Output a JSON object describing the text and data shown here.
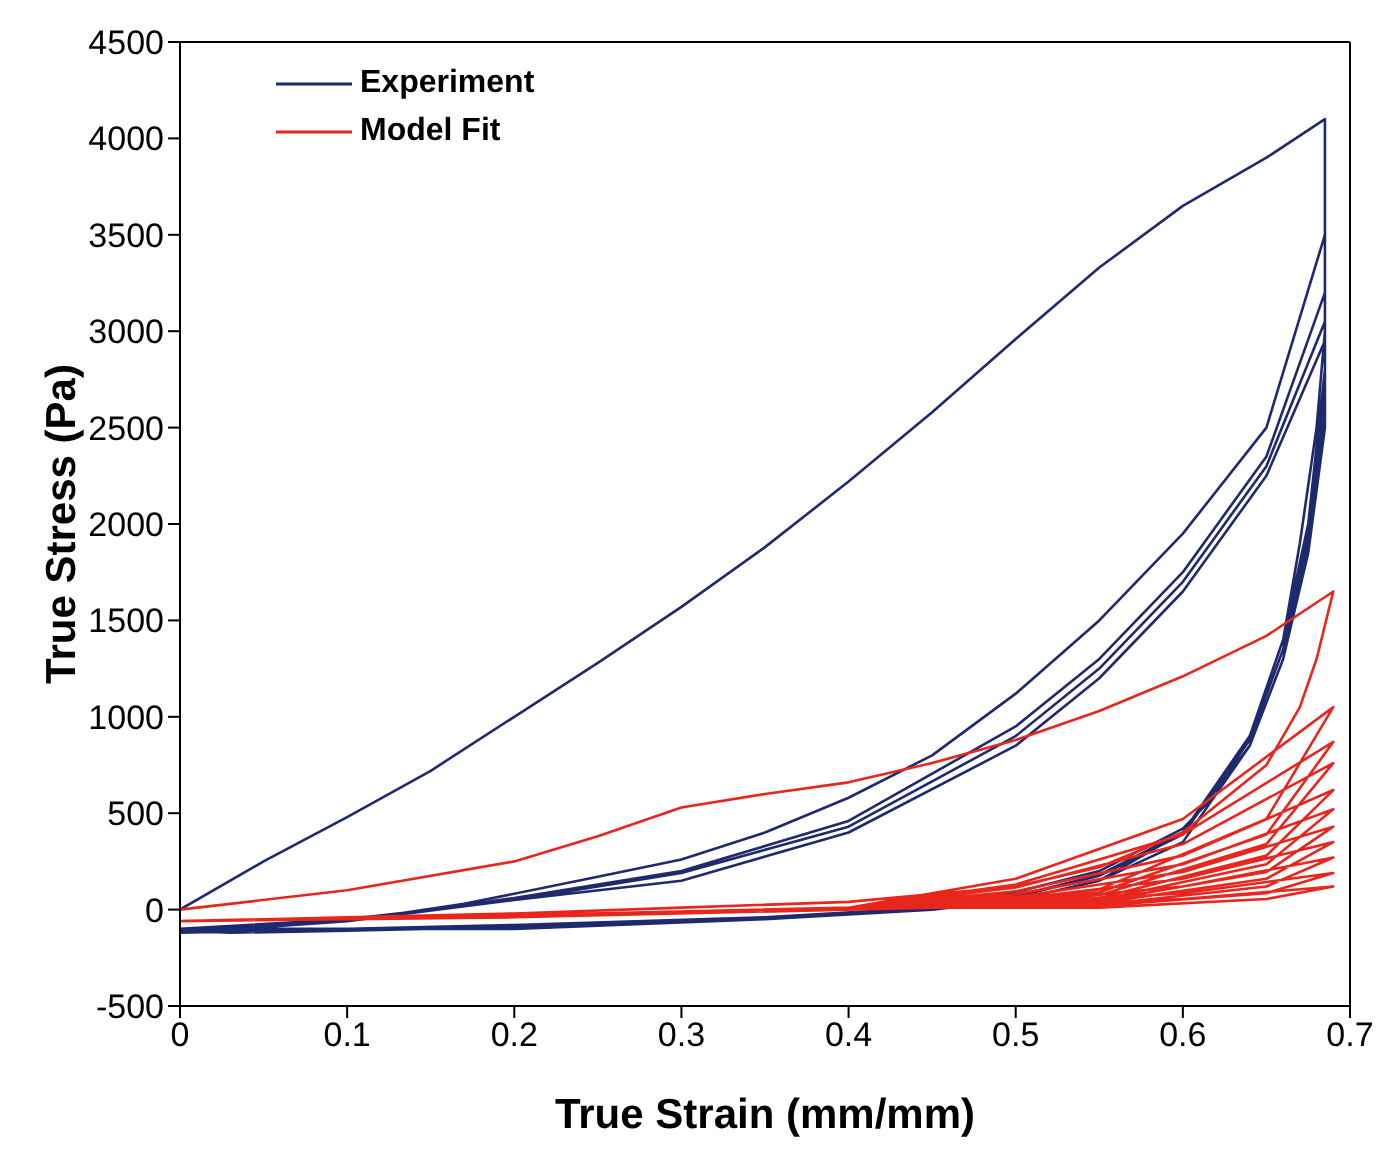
{
  "chart_data": {
    "type": "line",
    "xlabel": "True Strain (mm/mm)",
    "ylabel": "True Stress (Pa)",
    "xlim": [
      0,
      0.7
    ],
    "xticks": [
      0,
      0.1,
      0.2,
      0.3,
      0.4,
      0.5,
      0.6,
      0.7
    ],
    "ylim": [
      -500,
      4500
    ],
    "yticks": [
      -500,
      0,
      500,
      1000,
      1500,
      2000,
      2500,
      3000,
      3500,
      4000,
      4500
    ],
    "legend": "top left",
    "marker": "none",
    "line_style": "solid",
    "series": [
      {
        "name": "Experiment",
        "color": "#1f2a6e",
        "x": [
          0,
          0.05,
          0.1,
          0.15,
          0.2,
          0.25,
          0.3,
          0.35,
          0.4,
          0.45,
          0.5,
          0.55,
          0.6,
          0.65,
          0.685,
          0.685,
          0.68,
          0.67,
          0.66,
          0.64,
          0.62,
          0.6,
          0.55,
          0.5,
          0.45,
          0.4,
          0.3,
          0.2,
          0.1,
          0.03,
          0,
          0.1,
          0.17,
          0.25,
          0.3,
          0.35,
          0.4,
          0.45,
          0.5,
          0.55,
          0.6,
          0.65,
          0.685,
          0.685,
          0.675,
          0.66,
          0.64,
          0.6,
          0.55,
          0.5,
          0.45,
          0.35,
          0.2,
          0.05,
          0,
          0.1,
          0.2,
          0.3,
          0.4,
          0.5,
          0.55,
          0.6,
          0.65,
          0.685,
          0.685,
          0.675,
          0.66,
          0.64,
          0.6,
          0.55,
          0.5,
          0.45,
          0.35,
          0.2,
          0.05,
          0,
          0.1,
          0.2,
          0.3,
          0.4,
          0.5,
          0.55,
          0.6,
          0.65,
          0.685,
          0.685,
          0.675,
          0.66,
          0.64,
          0.6,
          0.55,
          0.5,
          0.45,
          0.35,
          0.2,
          0.05,
          0,
          0.1,
          0.2,
          0.3,
          0.4,
          0.5,
          0.55,
          0.6,
          0.65,
          0.685,
          0.685,
          0.675,
          0.66,
          0.64,
          0.6,
          0.55,
          0.5,
          0.45,
          0.35,
          0.2,
          0.05,
          0
        ],
        "values": [
          0,
          250,
          480,
          720,
          1000,
          1280,
          1570,
          1880,
          2220,
          2580,
          2960,
          3330,
          3650,
          3900,
          4100,
          3000,
          2500,
          1900,
          1400,
          900,
          600,
          420,
          200,
          90,
          20,
          -20,
          -60,
          -90,
          -110,
          -120,
          -110,
          -60,
          30,
          170,
          260,
          400,
          580,
          800,
          1120,
          1500,
          1950,
          2500,
          3500,
          2800,
          2000,
          1400,
          900,
          400,
          180,
          70,
          10,
          -40,
          -80,
          -110,
          -120,
          -60,
          60,
          200,
          460,
          950,
          1300,
          1750,
          2350,
          3200,
          2700,
          1950,
          1350,
          880,
          390,
          175,
          65,
          10,
          -40,
          -80,
          -110,
          -120,
          -60,
          50,
          190,
          430,
          900,
          1250,
          1700,
          2300,
          3050,
          2600,
          1900,
          1300,
          850,
          400,
          150,
          50,
          0,
          -50,
          -100,
          -100,
          -100,
          -50,
          50,
          150,
          400,
          850,
          1200,
          1650,
          2250,
          2950,
          2500,
          1850,
          1300,
          850,
          350,
          150,
          50,
          0,
          -50,
          -100,
          -100,
          -100
        ]
      },
      {
        "name": "Model Fit",
        "color": "#e8261c",
        "x": [
          0,
          0.1,
          0.2,
          0.25,
          0.3,
          0.35,
          0.4,
          0.45,
          0.5,
          0.55,
          0.6,
          0.65,
          0.69,
          0.68,
          0.67,
          0.65,
          0.6,
          0.55,
          0.5,
          0.4,
          0.3,
          0.2,
          0.1,
          0,
          0.2,
          0.4,
          0.5,
          0.6,
          0.69,
          0.65,
          0.55,
          0.45,
          0.2,
          0,
          0.2,
          0.4,
          0.5,
          0.6,
          0.69,
          0.65,
          0.55,
          0.45,
          0.2,
          0,
          0.2,
          0.4,
          0.5,
          0.6,
          0.69,
          0.65,
          0.55,
          0.45,
          0.2,
          0,
          0.2,
          0.4,
          0.5,
          0.6,
          0.69,
          0.65,
          0.55,
          0.45,
          0.2,
          0,
          0.2,
          0.4,
          0.5,
          0.6,
          0.69,
          0.65,
          0.55,
          0.45,
          0.2,
          0,
          0.2,
          0.4,
          0.5,
          0.6,
          0.69,
          0.65,
          0.55,
          0.45,
          0.2,
          0,
          0.2,
          0.4,
          0.5,
          0.6,
          0.69,
          0.65,
          0.55,
          0.45,
          0.2,
          0,
          0.2,
          0.4,
          0.5,
          0.6,
          0.69,
          0.65,
          0.55,
          0.45,
          0.2,
          0,
          0.2,
          0.4,
          0.5,
          0.6,
          0.69,
          0.65,
          0.55,
          0.45,
          0.2,
          0,
          0.2,
          0.4,
          0.5,
          0.6,
          0.69,
          0.65,
          0.55,
          0.45,
          0.2,
          0
        ],
        "values": [
          0,
          100,
          250,
          380,
          530,
          600,
          660,
          760,
          880,
          1030,
          1210,
          1420,
          1650,
          1300,
          1050,
          750,
          400,
          220,
          120,
          40,
          10,
          -20,
          -40,
          -60,
          -30,
          10,
          160,
          470,
          1050,
          470,
          105,
          10,
          -40,
          -60,
          -30,
          10,
          130,
          390,
          870,
          390,
          90,
          10,
          -40,
          -60,
          -30,
          10,
          115,
          340,
          760,
          340,
          75,
          10,
          -40,
          -60,
          -30,
          10,
          95,
          280,
          620,
          280,
          60,
          10,
          -40,
          -60,
          -30,
          10,
          80,
          235,
          520,
          235,
          50,
          10,
          -40,
          -60,
          -30,
          10,
          65,
          195,
          430,
          195,
          45,
          10,
          -40,
          -60,
          -30,
          10,
          55,
          160,
          350,
          160,
          35,
          10,
          -40,
          -60,
          -30,
          10,
          40,
          120,
          270,
          120,
          25,
          10,
          -40,
          -60,
          -30,
          10,
          30,
          85,
          190,
          85,
          20,
          10,
          -40,
          -60,
          -30,
          10,
          20,
          55,
          120,
          55,
          10,
          10,
          -40,
          -60
        ]
      }
    ]
  }
}
